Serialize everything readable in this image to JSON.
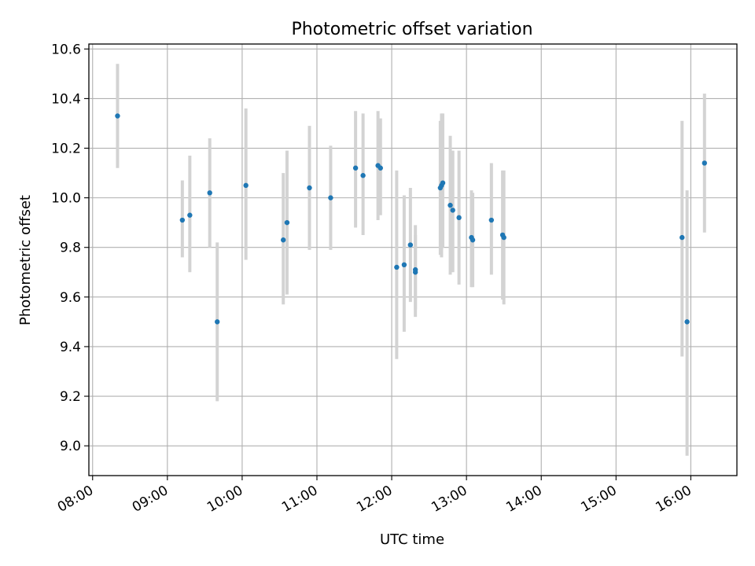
{
  "chart_data": {
    "type": "scatter",
    "title": "Photometric offset variation",
    "xlabel": "UTC time",
    "ylabel": "Photometric offset",
    "x_unit": "UTC time (HH:MM)",
    "xlim": [
      "07:57",
      "16:37"
    ],
    "ylim": [
      8.88,
      10.62
    ],
    "x_ticks": [
      "08:00",
      "09:00",
      "10:00",
      "11:00",
      "12:00",
      "13:00",
      "14:00",
      "15:00",
      "16:00"
    ],
    "y_ticks": [
      9.0,
      9.2,
      9.4,
      9.6,
      9.8,
      10.0,
      10.2,
      10.4,
      10.6
    ],
    "y_tick_labels": [
      "9.0",
      "9.2",
      "9.4",
      "9.6",
      "9.8",
      "10.0",
      "10.2",
      "10.4",
      "10.6"
    ],
    "grid": true,
    "legend": "none",
    "point_color": "#1f77b4",
    "errorbar_color": "#d3d3d3",
    "points": [
      {
        "t": "08:20",
        "y": 10.33,
        "lo": 10.12,
        "hi": 10.54
      },
      {
        "t": "09:12",
        "y": 9.91,
        "lo": 9.76,
        "hi": 10.07
      },
      {
        "t": "09:18",
        "y": 9.93,
        "lo": 9.7,
        "hi": 10.17
      },
      {
        "t": "09:34",
        "y": 10.02,
        "lo": 9.8,
        "hi": 10.24
      },
      {
        "t": "09:40",
        "y": 9.5,
        "lo": 9.18,
        "hi": 9.82
      },
      {
        "t": "10:03",
        "y": 10.05,
        "lo": 9.75,
        "hi": 10.36
      },
      {
        "t": "10:33",
        "y": 9.83,
        "lo": 9.57,
        "hi": 10.1
      },
      {
        "t": "10:36",
        "y": 9.9,
        "lo": 9.61,
        "hi": 10.19
      },
      {
        "t": "10:54",
        "y": 10.04,
        "lo": 9.79,
        "hi": 10.29
      },
      {
        "t": "11:11",
        "y": 10.0,
        "lo": 9.79,
        "hi": 10.21
      },
      {
        "t": "11:31",
        "y": 10.12,
        "lo": 9.88,
        "hi": 10.35
      },
      {
        "t": "11:37",
        "y": 10.09,
        "lo": 9.85,
        "hi": 10.34
      },
      {
        "t": "11:49",
        "y": 10.13,
        "lo": 9.91,
        "hi": 10.35
      },
      {
        "t": "11:51",
        "y": 10.12,
        "lo": 9.93,
        "hi": 10.32
      },
      {
        "t": "12:04",
        "y": 9.72,
        "lo": 9.35,
        "hi": 10.11
      },
      {
        "t": "12:10",
        "y": 9.73,
        "lo": 9.46,
        "hi": 10.01
      },
      {
        "t": "12:15",
        "y": 9.81,
        "lo": 9.58,
        "hi": 10.04
      },
      {
        "t": "12:19",
        "y": 9.71,
        "lo": 9.52,
        "hi": 9.89
      },
      {
        "t": "12:19",
        "y": 9.7,
        "lo": 9.55,
        "hi": 9.85
      },
      {
        "t": "12:39",
        "y": 10.04,
        "lo": 9.77,
        "hi": 10.31
      },
      {
        "t": "12:40",
        "y": 10.05,
        "lo": 9.76,
        "hi": 10.34
      },
      {
        "t": "12:41",
        "y": 10.06,
        "lo": 9.8,
        "hi": 10.34
      },
      {
        "t": "12:47",
        "y": 9.97,
        "lo": 9.69,
        "hi": 10.25
      },
      {
        "t": "12:49",
        "y": 9.95,
        "lo": 9.7,
        "hi": 10.19
      },
      {
        "t": "12:54",
        "y": 9.92,
        "lo": 9.65,
        "hi": 10.19
      },
      {
        "t": "13:04",
        "y": 9.84,
        "lo": 9.64,
        "hi": 10.03
      },
      {
        "t": "13:05",
        "y": 9.83,
        "lo": 9.64,
        "hi": 10.02
      },
      {
        "t": "13:20",
        "y": 9.91,
        "lo": 9.69,
        "hi": 10.14
      },
      {
        "t": "13:29",
        "y": 9.85,
        "lo": 9.59,
        "hi": 10.11
      },
      {
        "t": "13:30",
        "y": 9.84,
        "lo": 9.57,
        "hi": 10.11
      },
      {
        "t": "15:53",
        "y": 9.84,
        "lo": 9.36,
        "hi": 10.31
      },
      {
        "t": "15:57",
        "y": 9.5,
        "lo": 8.96,
        "hi": 10.03
      },
      {
        "t": "16:11",
        "y": 10.14,
        "lo": 9.86,
        "hi": 10.42
      }
    ]
  }
}
